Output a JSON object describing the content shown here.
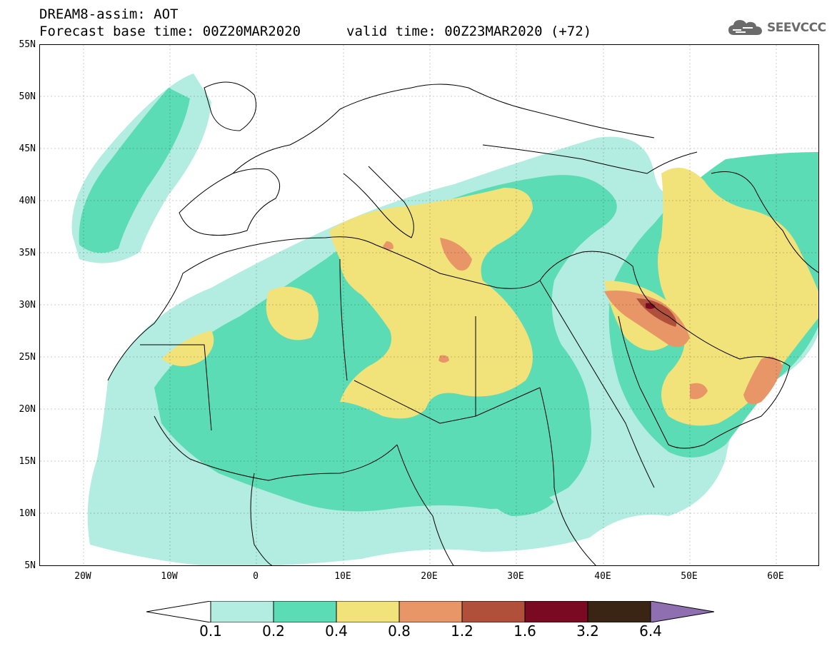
{
  "header": {
    "title": "DREAM8-assim: AOT",
    "base_time": "Forecast base time: 00Z20MAR2020",
    "valid_time": "valid time: 00Z23MAR2020 (+72)"
  },
  "logo": {
    "text": "SEEVCCC",
    "icon": "cloud-icon"
  },
  "map": {
    "projection": "lat-lon",
    "lon_range": [
      -25,
      65
    ],
    "lat_range": [
      5,
      55
    ],
    "lat_ticks": [
      {
        "value": 55,
        "label": "55N"
      },
      {
        "value": 50,
        "label": "50N"
      },
      {
        "value": 45,
        "label": "45N"
      },
      {
        "value": 40,
        "label": "40N"
      },
      {
        "value": 35,
        "label": "35N"
      },
      {
        "value": 30,
        "label": "30N"
      },
      {
        "value": 25,
        "label": "25N"
      },
      {
        "value": 20,
        "label": "20N"
      },
      {
        "value": 15,
        "label": "15N"
      },
      {
        "value": 10,
        "label": "10N"
      },
      {
        "value": 5,
        "label": "5N"
      }
    ],
    "lon_ticks": [
      {
        "value": -20,
        "label": "20W"
      },
      {
        "value": -10,
        "label": "10W"
      },
      {
        "value": 0,
        "label": "0"
      },
      {
        "value": 10,
        "label": "10E"
      },
      {
        "value": 20,
        "label": "20E"
      },
      {
        "value": 30,
        "label": "30E"
      },
      {
        "value": 40,
        "label": "40E"
      },
      {
        "value": 50,
        "label": "50E"
      },
      {
        "value": 60,
        "label": "60E"
      }
    ]
  },
  "colorbar": {
    "labels": [
      "0.1",
      "0.2",
      "0.4",
      "0.8",
      "1.2",
      "1.6",
      "3.2",
      "6.4"
    ],
    "colors": {
      "below": "#ffffff",
      "c1": "#b3ede1",
      "c2": "#5cdcb4",
      "c3": "#f2e27a",
      "c4": "#e89668",
      "c5": "#b0503a",
      "c6": "#7a0a22",
      "c7": "#3a2414",
      "above": "#8f6fb0"
    }
  }
}
